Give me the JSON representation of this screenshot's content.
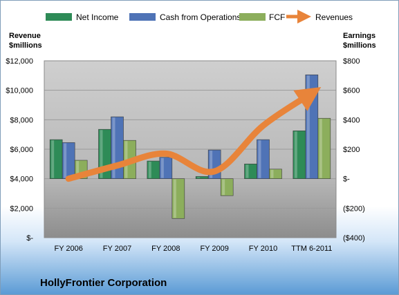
{
  "chart_data": {
    "type": "bar",
    "company": "HollyFrontier Corporation",
    "categories": [
      "FY 2006",
      "FY 2007",
      "FY 2008",
      "FY 2009",
      "FY 2010",
      "TTM 6-2011"
    ],
    "left_axis": {
      "title_line1": "Revenue",
      "title_line2": "$millions",
      "range": [
        0,
        12000
      ],
      "ticks": [
        0,
        2000,
        4000,
        6000,
        8000,
        10000,
        12000
      ],
      "tick_labels": [
        "$-",
        "$2,000",
        "$4,000",
        "$6,000",
        "$8,000",
        "$10,000",
        "$12,000"
      ]
    },
    "right_axis": {
      "title_line1": "Earnings",
      "title_line2": "$millions",
      "range": [
        -400,
        800
      ],
      "ticks": [
        -400,
        -200,
        0,
        200,
        400,
        600,
        800
      ],
      "tick_labels": [
        "($400)",
        "($200)",
        "$-",
        "$200",
        "$400",
        "$600",
        "$800"
      ]
    },
    "series": [
      {
        "name": "Net Income",
        "axis": "right",
        "kind": "bar",
        "color": "#2e8b57",
        "values": [
          265,
          335,
          120,
          15,
          100,
          325
        ]
      },
      {
        "name": "Cash from Operations",
        "axis": "right",
        "kind": "bar",
        "color": "#4f73b6",
        "values": [
          245,
          420,
          145,
          195,
          265,
          705
        ]
      },
      {
        "name": "FCF",
        "axis": "right",
        "kind": "bar",
        "color": "#8cae5c",
        "values": [
          125,
          260,
          -270,
          -115,
          65,
          410
        ]
      },
      {
        "name": "Revenues",
        "axis": "left",
        "kind": "line",
        "color": "#e8843a",
        "values": [
          4000,
          4900,
          5700,
          4500,
          7600,
          9800
        ]
      }
    ],
    "grid": true,
    "legend_position": "top"
  }
}
